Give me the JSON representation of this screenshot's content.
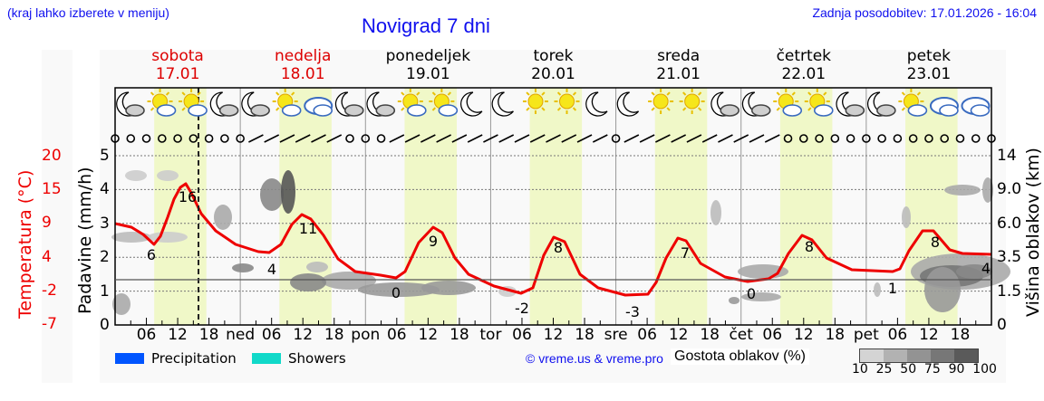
{
  "header": {
    "region_hint": "(kraj lahko izberete v meniju)",
    "title": "Novigrad 7 dni",
    "last_update": "Zadnja posodobitev: 17.01.2026 - 16:04"
  },
  "days": [
    {
      "name": "sobota",
      "date": "17.01",
      "weekend": true
    },
    {
      "name": "nedelja",
      "date": "18.01",
      "weekend": true
    },
    {
      "name": "ponedeljek",
      "date": "19.01",
      "weekend": false
    },
    {
      "name": "torek",
      "date": "20.01",
      "weekend": false
    },
    {
      "name": "sreda",
      "date": "21.01",
      "weekend": false
    },
    {
      "name": "četrtek",
      "date": "22.01",
      "weekend": false
    },
    {
      "name": "petek",
      "date": "23.01",
      "weekend": false
    }
  ],
  "axes": {
    "temperature_label": "Temperatura (°C)",
    "precip_label": "Padavine (mm/h)",
    "cloud_height_label": "Višina oblakov (km)",
    "temperature_ticks": [
      "20",
      "15",
      "9",
      "4",
      "-2",
      "-7"
    ],
    "precip_ticks": [
      "5",
      "4",
      "3",
      "2",
      "1",
      "0"
    ],
    "cloud_height_ticks": [
      "14",
      "9.0",
      "6.0",
      "3.5",
      "1.5",
      "0"
    ],
    "x_ticks": [
      "06",
      "12",
      "18",
      "ned",
      "06",
      "12",
      "18",
      "pon",
      "06",
      "12",
      "18",
      "tor",
      "06",
      "12",
      "18",
      "sre",
      "06",
      "12",
      "18",
      "čet",
      "06",
      "12",
      "18",
      "pet",
      "06",
      "12",
      "18"
    ]
  },
  "legend": {
    "precipitation": {
      "label": "Precipitation",
      "color": "#0055ff"
    },
    "showers": {
      "label": "Showers",
      "color": "#11d9c9"
    },
    "copyright": "© vreme.us & vreme.pro",
    "cloud_density_label": "Gostota oblakov (%)",
    "cloud_density_scale": [
      "10",
      "25",
      "50",
      "75",
      "90",
      "100"
    ],
    "cloud_density_colors": [
      "#d4d4d4",
      "#b2b2b2",
      "#939393",
      "#777777",
      "#5a5a5a"
    ]
  },
  "colors": {
    "temperature_line": "#ee0000",
    "daylight_band": "#f0f8c8",
    "weekend_text": "#dd0000",
    "link_blue": "#1010ee"
  },
  "chart_data": {
    "type": "line",
    "title": "Novigrad 7 dni",
    "xlabel": "",
    "ylabel": "Temperatura (°C)",
    "y2label": "Padavine (mm/h)",
    "y3label": "Višina oblakov (km)",
    "ylim_temperature": [
      -7,
      20
    ],
    "ylim_precip": [
      0,
      5
    ],
    "grid": true,
    "temperature_labels": [
      {
        "day": "sobota",
        "time": "07",
        "value": 6
      },
      {
        "day": "sobota",
        "time": "14",
        "value": 16
      },
      {
        "day": "nedelja",
        "time": "03",
        "value": 4
      },
      {
        "day": "nedelja",
        "time": "13",
        "value": 11
      },
      {
        "day": "ponedeljek",
        "time": "06",
        "value": 0
      },
      {
        "day": "ponedeljek",
        "time": "14",
        "value": 9
      },
      {
        "day": "torek",
        "time": "00",
        "value": -2
      },
      {
        "day": "torek",
        "time": "13",
        "value": 8
      },
      {
        "day": "sreda",
        "time": "03",
        "value": -3
      },
      {
        "day": "sreda",
        "time": "13",
        "value": 7
      },
      {
        "day": "četrtek",
        "time": "05",
        "value": 0
      },
      {
        "day": "četrtek",
        "time": "13",
        "value": 8
      },
      {
        "day": "petek",
        "time": "05",
        "value": 1
      },
      {
        "day": "petek",
        "time": "13",
        "value": 8
      },
      {
        "day": "petek",
        "time": "23",
        "value": 4
      }
    ],
    "precipitation": [],
    "showers": [],
    "current_time_marker": "17.01 16:04"
  }
}
